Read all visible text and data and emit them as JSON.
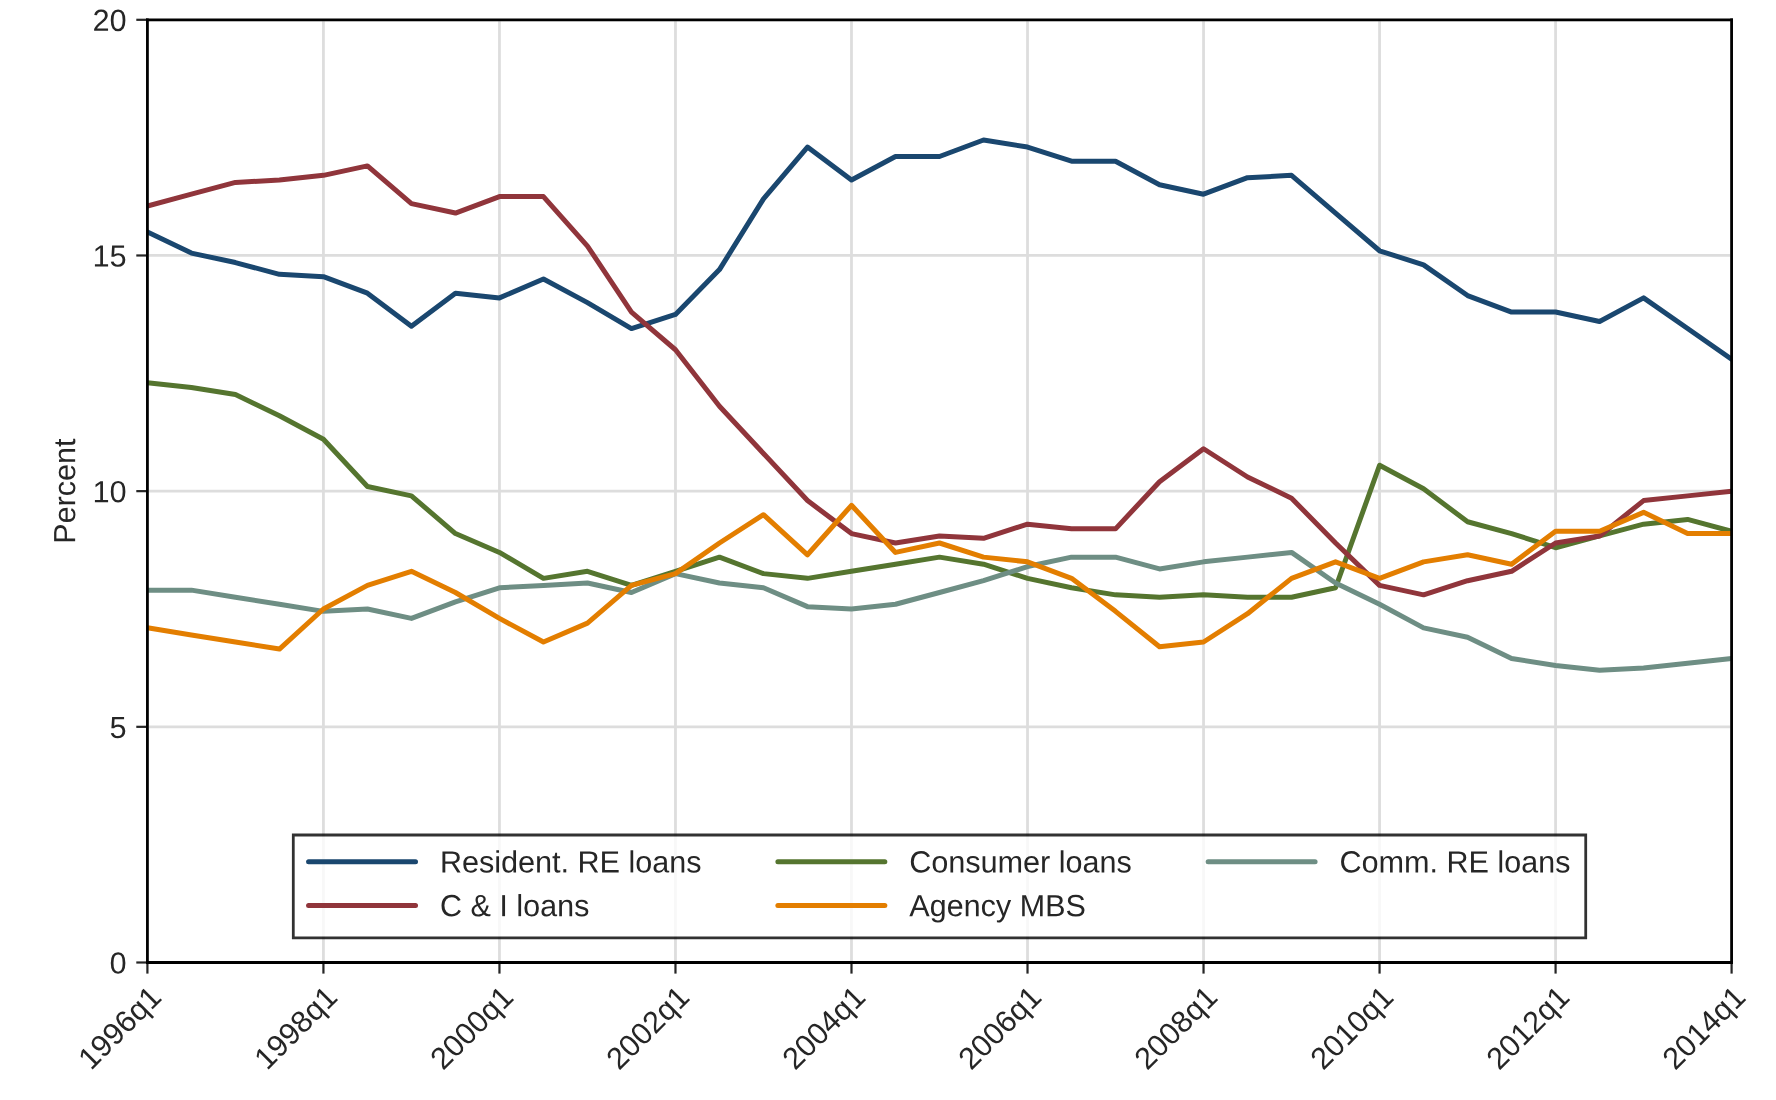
{
  "chart_data": {
    "type": "line",
    "ylabel": "Percent",
    "categories": [
      "1996q1",
      null,
      null,
      null,
      "1998q1",
      null,
      null,
      null,
      "2000q1",
      null,
      null,
      null,
      "2002q1",
      null,
      null,
      null,
      "2004q1",
      null,
      null,
      null,
      "2006q1",
      null,
      null,
      null,
      "2008q1",
      null,
      null,
      null,
      "2010q1",
      null,
      null,
      null,
      "2012q1",
      null,
      null,
      null,
      "2014q1"
    ],
    "series": [
      {
        "name": "Resident. RE loans",
        "color": "#1a476f",
        "values": [
          15.5,
          15.05,
          14.85,
          14.6,
          14.55,
          14.2,
          13.5,
          14.2,
          14.1,
          14.5,
          14.0,
          13.45,
          13.75,
          14.7,
          16.2,
          17.3,
          16.6,
          17.1,
          17.1,
          17.45,
          17.3,
          17.0,
          17.0,
          16.5,
          16.3,
          16.65,
          16.7,
          15.9,
          15.1,
          14.8,
          14.15,
          13.8,
          13.8,
          13.6,
          14.1,
          13.45,
          12.8
        ]
      },
      {
        "name": "Consumer loans",
        "color": "#55752f",
        "values": [
          12.3,
          12.2,
          12.05,
          11.6,
          11.1,
          10.1,
          9.9,
          9.1,
          8.7,
          8.15,
          8.3,
          8.0,
          8.3,
          8.6,
          8.25,
          8.15,
          8.3,
          8.45,
          8.6,
          8.45,
          8.15,
          7.95,
          7.8,
          7.75,
          7.8,
          7.75,
          7.75,
          7.95,
          10.55,
          10.05,
          9.35,
          9.1,
          8.8,
          9.05,
          9.3,
          9.4,
          9.15
        ]
      },
      {
        "name": "Comm. RE loans",
        "color": "#6e8e84",
        "values": [
          7.9,
          7.9,
          7.75,
          7.6,
          7.45,
          7.5,
          7.3,
          7.65,
          7.95,
          8.0,
          8.05,
          7.85,
          8.25,
          8.05,
          7.95,
          7.55,
          7.5,
          7.6,
          7.85,
          8.1,
          8.4,
          8.6,
          8.6,
          8.35,
          8.5,
          8.6,
          8.7,
          8.05,
          7.6,
          7.1,
          6.9,
          6.45,
          6.3,
          6.2,
          6.25,
          6.35,
          6.45
        ]
      },
      {
        "name": "C & I loans",
        "color": "#90353b",
        "values": [
          16.05,
          16.3,
          16.55,
          16.6,
          16.7,
          16.9,
          16.1,
          15.9,
          16.25,
          16.25,
          15.2,
          13.8,
          13.0,
          11.8,
          10.8,
          9.8,
          9.1,
          8.9,
          9.05,
          9.0,
          9.3,
          9.2,
          9.2,
          10.2,
          10.9,
          10.3,
          9.85,
          8.9,
          8.0,
          7.8,
          8.1,
          8.3,
          8.9,
          9.05,
          9.8,
          9.9,
          10.0
        ]
      },
      {
        "name": "Agency MBS",
        "color": "#e37e00",
        "values": [
          7.1,
          6.95,
          6.8,
          6.65,
          7.5,
          8.0,
          8.3,
          7.85,
          7.3,
          6.8,
          7.2,
          8.0,
          8.25,
          8.9,
          9.5,
          8.65,
          9.7,
          8.7,
          8.9,
          8.6,
          8.5,
          8.15,
          7.45,
          6.7,
          6.8,
          7.4,
          8.15,
          8.5,
          8.15,
          8.5,
          8.65,
          8.45,
          9.15,
          9.15,
          9.55,
          9.1,
          9.1
        ]
      }
    ],
    "ylim": [
      0,
      20
    ],
    "yticks": [
      0,
      5,
      10,
      15,
      20
    ],
    "grid": true,
    "legend": "bottom",
    "marker": "none",
    "line_style": "solid"
  }
}
